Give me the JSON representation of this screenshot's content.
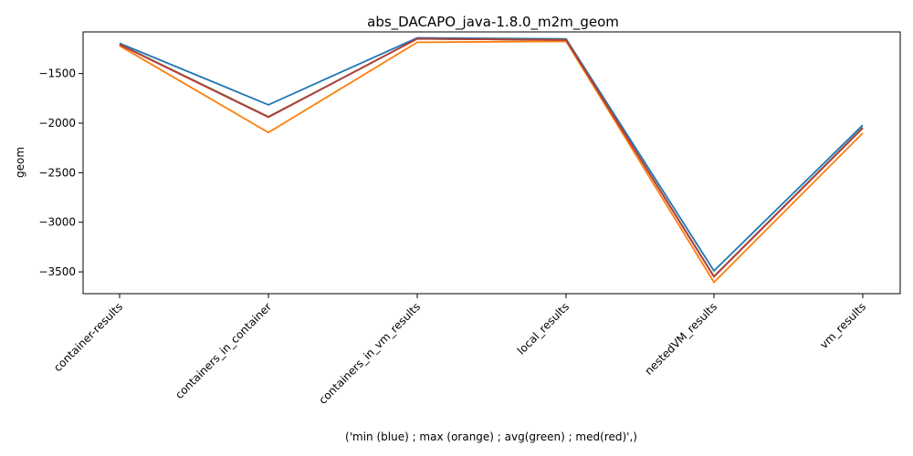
{
  "chart_data": {
    "type": "line",
    "title": "abs_DACAPO_java-1.8.0_m2m_geom",
    "xlabel": "('min (blue) ; max (orange) ; avg(green) ; med(red)',)",
    "ylabel": "geom",
    "categories": [
      "container-results",
      "containers_in_container",
      "containers_in_vm_results",
      "local_results",
      "nestedVM_results",
      "vm_results"
    ],
    "ylim": [
      -3720,
      -1080
    ],
    "yticks": [
      -1500,
      -2000,
      -2500,
      -3000,
      -3500
    ],
    "ytick_labels": [
      "−1500",
      "−2000",
      "−2500",
      "−3000",
      "−3500"
    ],
    "grid": false,
    "series": [
      {
        "color": "#1f77b4",
        "values": [
          -1195,
          -1815,
          -1140,
          -1150,
          -3490,
          -2020
        ]
      },
      {
        "color": "#ff7f0e",
        "values": [
          -1220,
          -2095,
          -1185,
          -1175,
          -3605,
          -2100
        ]
      },
      {
        "color": "#2ca02c",
        "values": [
          -1205,
          -1935,
          -1150,
          -1160,
          -3545,
          -2045
        ]
      },
      {
        "color": "#d62728",
        "values": [
          -1208,
          -1940,
          -1148,
          -1162,
          -3550,
          -2050
        ]
      },
      {
        "color": "#b0413e",
        "values": [
          -1206,
          -1938,
          -1149,
          -1161,
          -3548,
          -2048
        ]
      }
    ]
  }
}
